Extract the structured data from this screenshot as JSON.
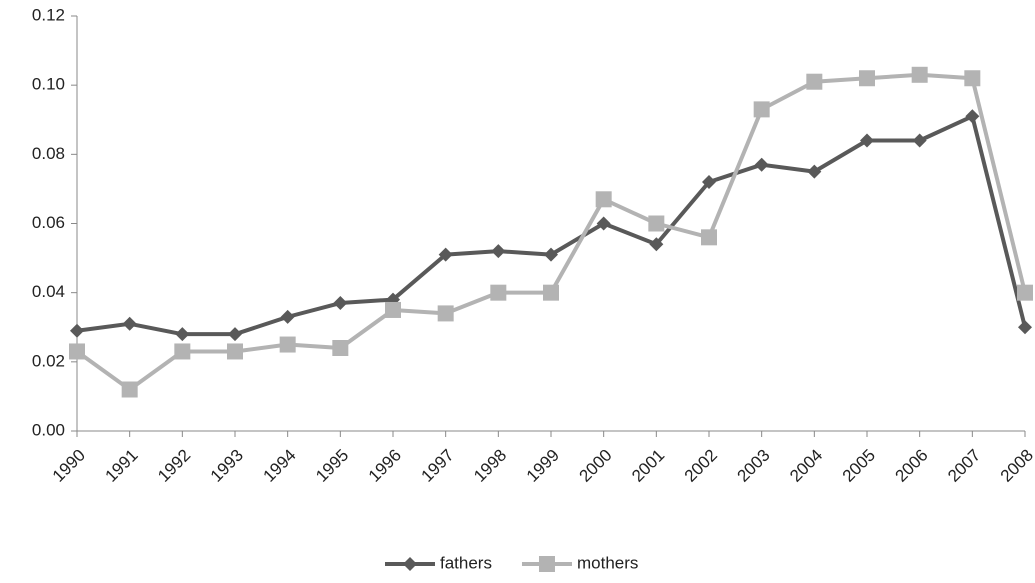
{
  "chart_data": {
    "type": "line",
    "categories": [
      "1990",
      "1991",
      "1992",
      "1993",
      "1994",
      "1995",
      "1996",
      "1997",
      "1998",
      "1999",
      "2000",
      "2001",
      "2002",
      "2003",
      "2004",
      "2005",
      "2006",
      "2007",
      "2008"
    ],
    "series": [
      {
        "name": "fathers",
        "color": "#595959",
        "marker": "diamond",
        "values": [
          0.029,
          0.031,
          0.028,
          0.028,
          0.033,
          0.037,
          0.038,
          0.051,
          0.052,
          0.051,
          0.06,
          0.054,
          0.072,
          0.077,
          0.075,
          0.084,
          0.084,
          0.091,
          0.03
        ]
      },
      {
        "name": "mothers",
        "color": "#b3b3b3",
        "marker": "square",
        "values": [
          0.023,
          0.012,
          0.023,
          0.023,
          0.025,
          0.024,
          0.035,
          0.034,
          0.04,
          0.04,
          0.067,
          0.06,
          0.056,
          0.093,
          0.101,
          0.102,
          0.103,
          0.102,
          0.04
        ]
      }
    ],
    "ylim": [
      0,
      0.12
    ],
    "yticks": [
      {
        "value": 0,
        "label": "0.00"
      },
      {
        "value": 0.02,
        "label": "0.02"
      },
      {
        "value": 0.04,
        "label": "0.04"
      },
      {
        "value": 0.06,
        "label": "0.06"
      },
      {
        "value": 0.08,
        "label": "0.08"
      },
      {
        "value": 0.1,
        "label": "0.10"
      },
      {
        "value": 0.12,
        "label": "0.12"
      }
    ],
    "legend": "bottom",
    "grid": false
  }
}
